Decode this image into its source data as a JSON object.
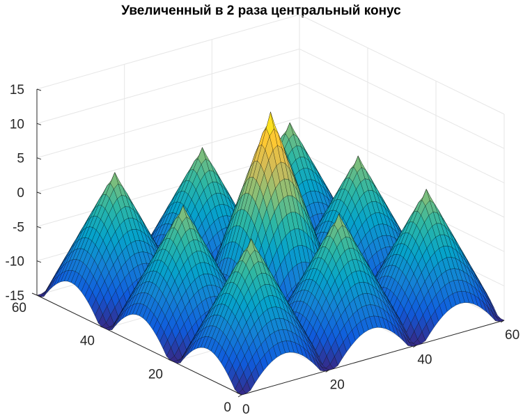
{
  "chart_data": {
    "type": "surface",
    "title": "Увеличенный в 2 раза центральный конус",
    "xlabel": "",
    "ylabel": "",
    "zlabel": "",
    "x_range": [
      0,
      60
    ],
    "y_range": [
      0,
      60
    ],
    "z_range": [
      -15,
      15
    ],
    "x_ticks": [
      "0",
      "20",
      "40",
      "60"
    ],
    "y_ticks": [
      "0",
      "20",
      "40",
      "60"
    ],
    "z_ticks": [
      "-15",
      "-10",
      "-5",
      "0",
      "5",
      "10",
      "15"
    ],
    "grid": true,
    "colormap": "parula",
    "peaks": [
      {
        "x": 10,
        "y": 10,
        "z": 3.5
      },
      {
        "x": 30,
        "y": 10,
        "z": 3.5
      },
      {
        "x": 50,
        "y": 10,
        "z": 3.5
      },
      {
        "x": 10,
        "y": 30,
        "z": 3.5
      },
      {
        "x": 30,
        "y": 30,
        "z": 13.5
      },
      {
        "x": 50,
        "y": 30,
        "z": 3.5
      },
      {
        "x": 10,
        "y": 50,
        "z": 3.5
      },
      {
        "x": 30,
        "y": 50,
        "z": 3.5
      },
      {
        "x": 50,
        "y": 50,
        "z": 3.5
      }
    ],
    "surface_min_z": -15
  },
  "colors": {
    "axis": "#262626",
    "grid": "#e6e6e6",
    "mesh": "#000000",
    "parula": [
      "#352a87",
      "#0f5cdd",
      "#1481d6",
      "#06a4ca",
      "#2eb7a4",
      "#87bf77",
      "#d1bb59",
      "#fec832",
      "#f9fb0e"
    ]
  }
}
